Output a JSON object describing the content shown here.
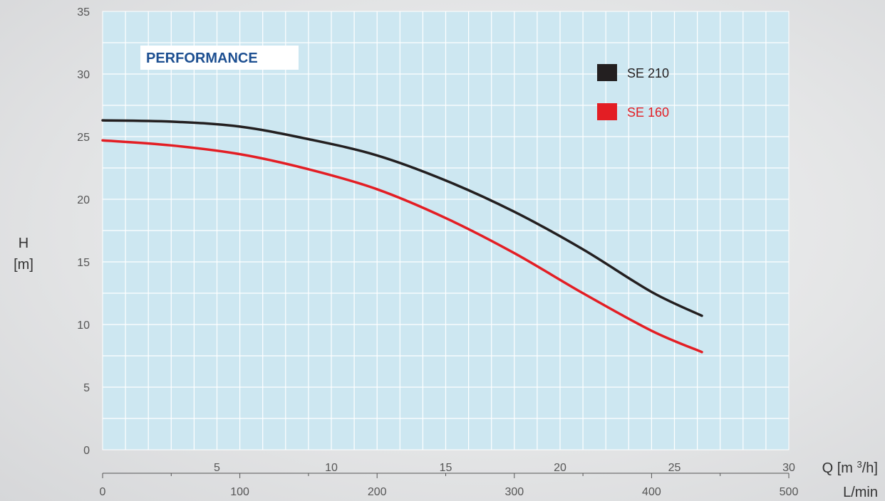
{
  "chart_data": {
    "type": "line",
    "title": "PERFORMANCE",
    "xlabel": "Q [m³/h]",
    "xlabel_secondary": "L/min",
    "ylabel_line1": "H",
    "ylabel_line2": "[m]",
    "xlim": [
      0,
      30
    ],
    "ylim": [
      0,
      35
    ],
    "x_ticks": [
      5,
      10,
      15,
      20,
      25,
      30
    ],
    "y_ticks": [
      0,
      5,
      10,
      15,
      20,
      25,
      30,
      35
    ],
    "secondary_x_ticks": [
      0,
      100,
      200,
      300,
      400,
      500
    ],
    "grid": true,
    "legend_position": "top-right",
    "series": [
      {
        "name": "SE 210",
        "color": "#231f20",
        "x": [
          0,
          3,
          6,
          9,
          12,
          15,
          18,
          21,
          24,
          26.2
        ],
        "y": [
          26.3,
          26.2,
          25.8,
          24.8,
          23.5,
          21.5,
          19.0,
          16.0,
          12.6,
          10.7
        ]
      },
      {
        "name": "SE 160",
        "color": "#e31e24",
        "x": [
          0,
          3,
          6,
          9,
          12,
          15,
          18,
          21,
          24,
          26.2
        ],
        "y": [
          24.7,
          24.3,
          23.6,
          22.4,
          20.8,
          18.5,
          15.7,
          12.5,
          9.5,
          7.8
        ]
      }
    ]
  }
}
